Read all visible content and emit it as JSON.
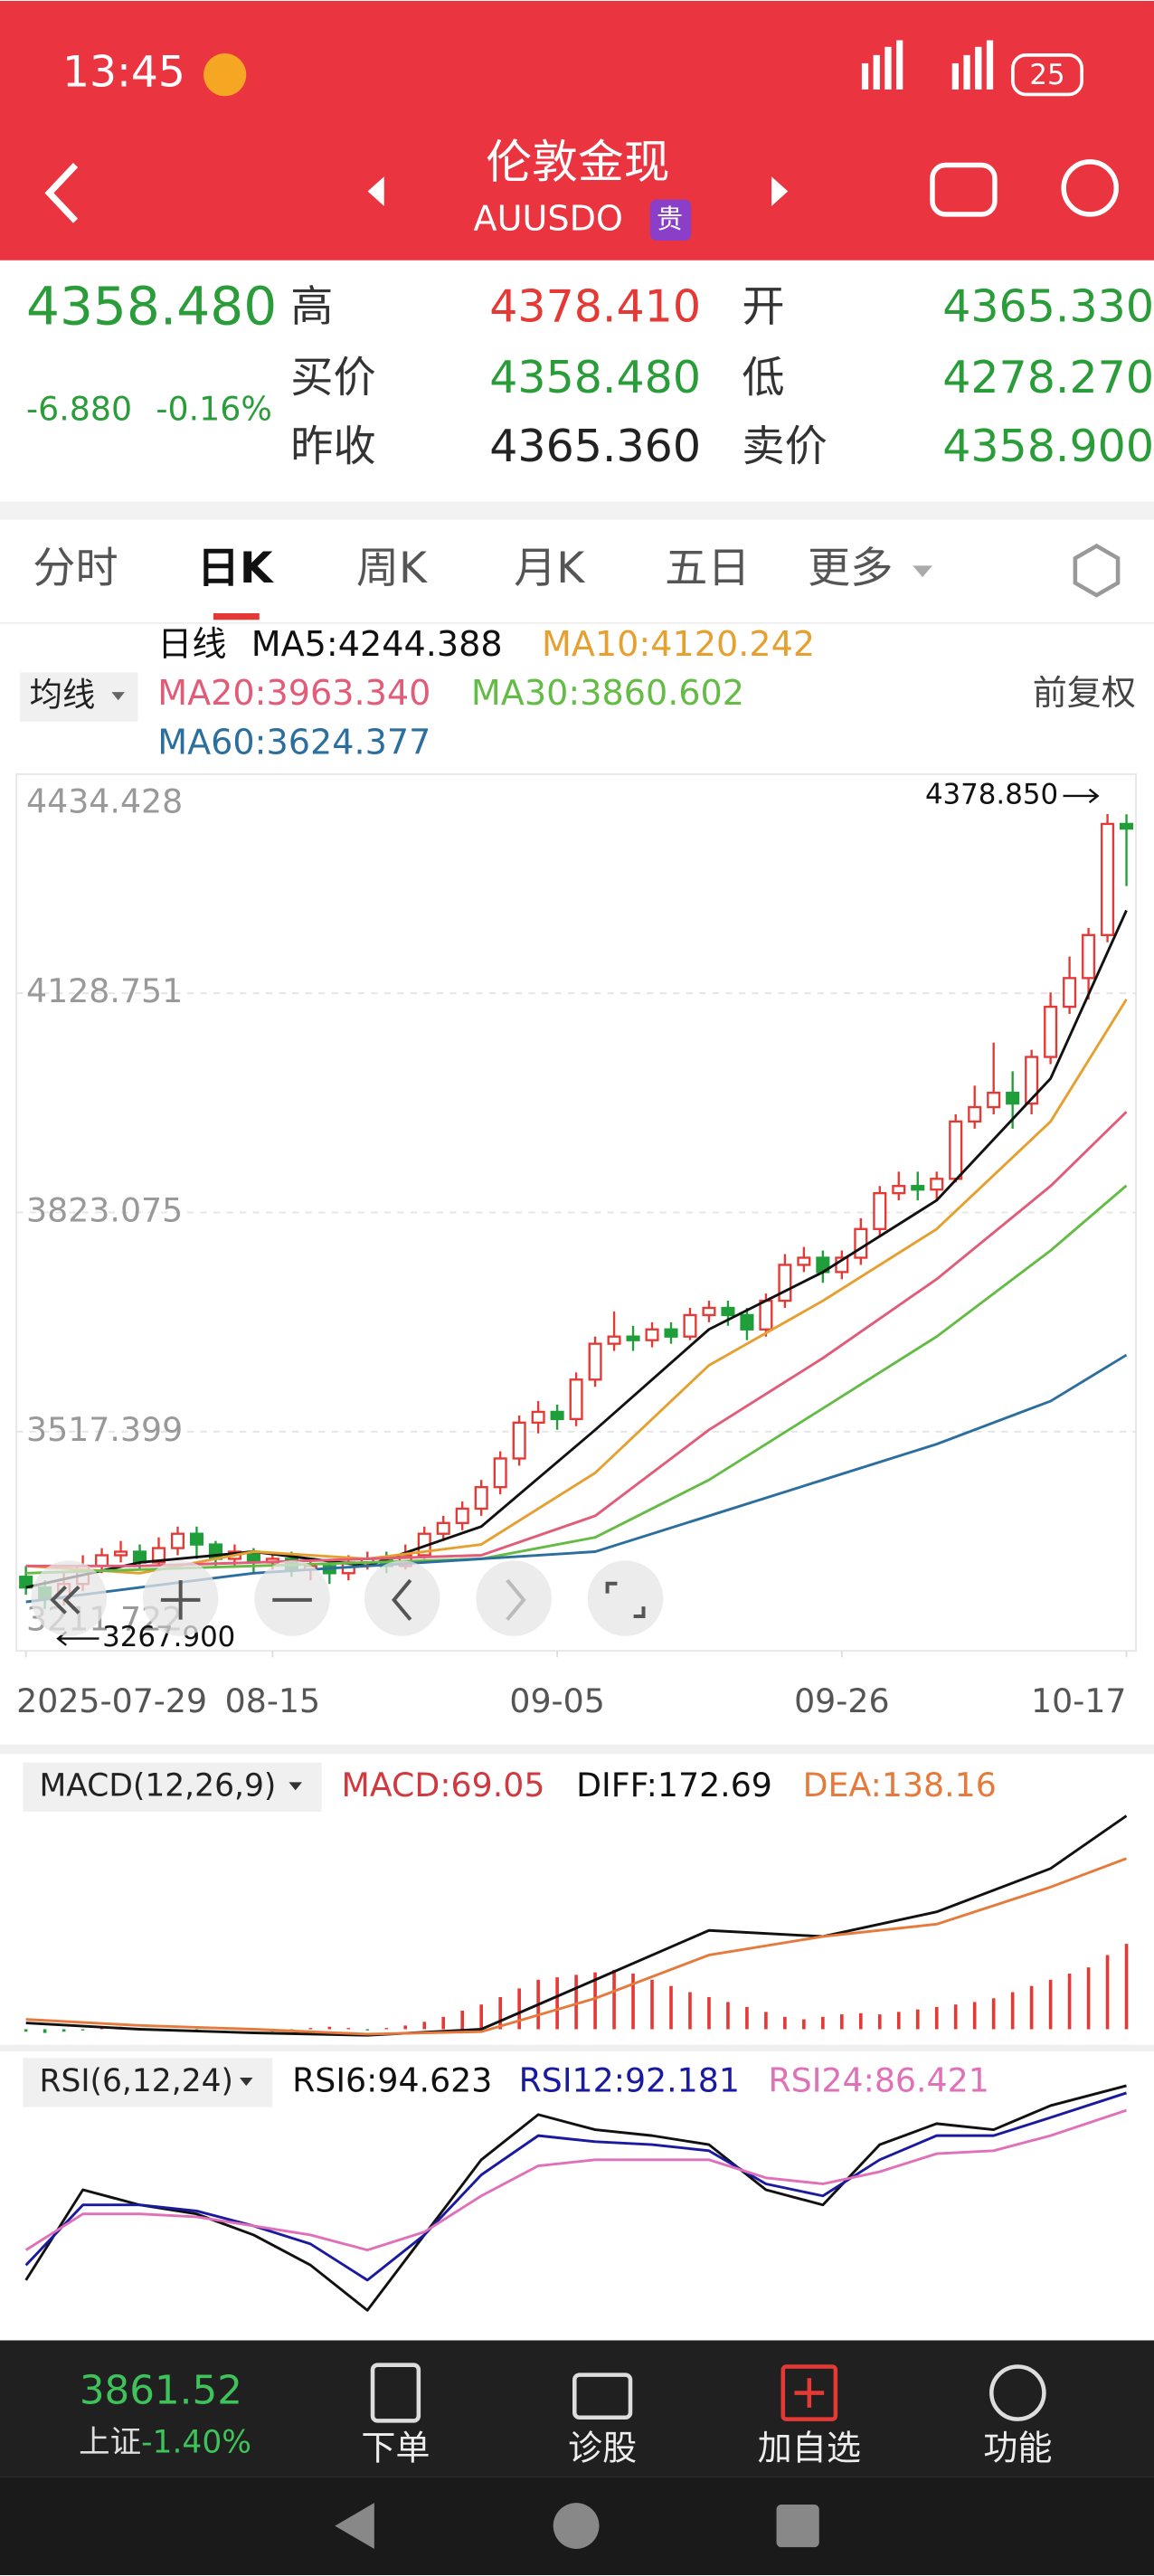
{
  "status_bar": {
    "time": "13:45",
    "battery": "25"
  },
  "header": {
    "title": "伦敦金现",
    "code": "AUUSDO",
    "badge": "贵"
  },
  "quote": {
    "price": "4358.480",
    "change": "-6.880",
    "change_pct": "-0.16%",
    "fields": [
      {
        "label": "高",
        "value": "4378.410"
      },
      {
        "label": "开",
        "value": "4365.330"
      },
      {
        "label": "买价",
        "value": "4358.480"
      },
      {
        "label": "低",
        "value": "4278.270"
      },
      {
        "label": "昨收",
        "value": "4365.360"
      },
      {
        "label": "卖价",
        "value": "4358.900"
      }
    ]
  },
  "tabs": [
    "分时",
    "日K",
    "周K",
    "月K",
    "五日",
    "更多"
  ],
  "kline": {
    "period": "日线",
    "ma_selector": "均线",
    "adjust": "前复权",
    "ylim": [
      3211.722,
      4434.428
    ],
    "yticks": [
      4434.428,
      4128.751,
      3823.075,
      3517.399,
      3211.722
    ],
    "xlim": [
      -0.5,
      58.5
    ],
    "xticks": [
      {
        "value": 0,
        "label": "2025-07-29"
      },
      {
        "value": 13,
        "label": "08-15"
      },
      {
        "value": 28,
        "label": "09-05"
      },
      {
        "value": 43,
        "label": "09-26"
      },
      {
        "value": 58,
        "label": "10-17"
      }
    ],
    "up_color": "#e53935",
    "down_color": "#1f9e3a",
    "max_label": "4378.850",
    "min_label": "3267.900",
    "candles": {
      "open": [
        3315,
        3300,
        3285,
        3305,
        3330,
        3345,
        3350,
        3335,
        3355,
        3375,
        3360,
        3340,
        3350,
        3335,
        3340,
        3325,
        3330,
        3320,
        3335,
        3340,
        3330,
        3345,
        3375,
        3390,
        3410,
        3440,
        3480,
        3530,
        3545,
        3535,
        3590,
        3640,
        3650,
        3645,
        3660,
        3650,
        3680,
        3690,
        3680,
        3660,
        3700,
        3750,
        3760,
        3740,
        3760,
        3800,
        3850,
        3860,
        3855,
        3870,
        3950,
        3970,
        3990,
        3975,
        4040,
        4110,
        4150,
        4210,
        4365
      ],
      "high": [
        3330,
        3310,
        3320,
        3345,
        3355,
        3365,
        3360,
        3370,
        3385,
        3385,
        3365,
        3360,
        3355,
        3350,
        3350,
        3340,
        3340,
        3345,
        3350,
        3350,
        3360,
        3385,
        3400,
        3420,
        3450,
        3490,
        3540,
        3560,
        3555,
        3600,
        3650,
        3685,
        3665,
        3670,
        3670,
        3690,
        3700,
        3700,
        3690,
        3710,
        3765,
        3775,
        3770,
        3770,
        3815,
        3860,
        3880,
        3880,
        3880,
        3960,
        4000,
        4060,
        4020,
        4050,
        4130,
        4180,
        4220,
        4378.85,
        4378.41
      ],
      "low": [
        3290,
        3270,
        3275,
        3295,
        3320,
        3335,
        3325,
        3330,
        3345,
        3340,
        3330,
        3330,
        3320,
        3325,
        3315,
        3310,
        3305,
        3310,
        3325,
        3320,
        3325,
        3340,
        3365,
        3380,
        3400,
        3430,
        3470,
        3515,
        3520,
        3525,
        3580,
        3630,
        3630,
        3635,
        3640,
        3645,
        3670,
        3665,
        3645,
        3650,
        3690,
        3740,
        3725,
        3730,
        3750,
        3790,
        3840,
        3840,
        3840,
        3865,
        3940,
        3960,
        3940,
        3960,
        4030,
        4100,
        4120,
        4200,
        4278.27
      ],
      "close": [
        3300,
        3285,
        3305,
        3330,
        3345,
        3350,
        3335,
        3355,
        3375,
        3360,
        3340,
        3350,
        3335,
        3340,
        3325,
        3330,
        3320,
        3335,
        3340,
        3330,
        3345,
        3375,
        3390,
        3410,
        3440,
        3480,
        3530,
        3545,
        3535,
        3590,
        3640,
        3650,
        3645,
        3660,
        3650,
        3680,
        3690,
        3680,
        3660,
        3700,
        3750,
        3760,
        3740,
        3760,
        3800,
        3850,
        3860,
        3855,
        3870,
        3950,
        3970,
        3990,
        3975,
        4040,
        4110,
        4150,
        4210,
        4365,
        4358.48
      ]
    },
    "ma": {
      "x": [
        0,
        6,
        12,
        18,
        24,
        30,
        36,
        42,
        48,
        54,
        58
      ],
      "series": [
        {
          "label": "MA5:4244.388",
          "color": "#111111",
          "values": [
            3300,
            3335,
            3350,
            3330,
            3385,
            3520,
            3660,
            3740,
            3840,
            4010,
            4244.388
          ]
        },
        {
          "label": "MA10:4120.242",
          "color": "#e5a030",
          "values": [
            3330,
            3320,
            3350,
            3340,
            3360,
            3460,
            3610,
            3700,
            3800,
            3950,
            4120.242
          ]
        },
        {
          "label": "MA20:3963.340",
          "color": "#e05c78",
          "values": [
            3330,
            3330,
            3335,
            3340,
            3345,
            3400,
            3520,
            3620,
            3730,
            3860,
            3963.34
          ]
        },
        {
          "label": "MA30:3860.602",
          "color": "#64bb45",
          "values": [
            3320,
            3325,
            3330,
            3335,
            3340,
            3370,
            3450,
            3550,
            3650,
            3770,
            3860.602
          ]
        },
        {
          "label": "MA60:3624.377",
          "color": "#2c6e9e",
          "values": [
            3280,
            3300,
            3320,
            3330,
            3340,
            3350,
            3400,
            3450,
            3500,
            3560,
            3624.377
          ]
        }
      ]
    }
  },
  "macd": {
    "title": "MACD(12,26,9)",
    "ylim": [
      -6,
      180
    ],
    "up_color": "#e53935",
    "down_color": "#1f9e3a",
    "histogram_label": "MACD:69.05",
    "histogram_color": "#d0393f",
    "histogram": [
      -2,
      -3,
      -2,
      -1,
      1,
      2,
      1,
      -1,
      -2,
      -1,
      1,
      0,
      -1,
      -2,
      -1,
      1,
      2,
      1,
      -1,
      1,
      3,
      6,
      10,
      15,
      20,
      26,
      33,
      40,
      42,
      44,
      46,
      48,
      45,
      40,
      35,
      30,
      26,
      22,
      18,
      14,
      10,
      8,
      10,
      12,
      13,
      12,
      14,
      16,
      18,
      20,
      22,
      25,
      30,
      35,
      40,
      45,
      50,
      60,
      69.05
    ],
    "x": [
      0,
      6,
      12,
      18,
      24,
      30,
      36,
      42,
      48,
      54,
      58
    ],
    "series": [
      {
        "label": "DIFF:172.69",
        "color": "#111111",
        "values": [
          5,
          0,
          -3,
          -5,
          0,
          40,
          80,
          75,
          95,
          130,
          172.69
        ]
      },
      {
        "label": "DEA:138.16",
        "color": "#e57a3c",
        "values": [
          8,
          3,
          0,
          -4,
          -2,
          25,
          60,
          75,
          85,
          115,
          138.16
        ]
      }
    ]
  },
  "rsi": {
    "title": "RSI(6,12,24)",
    "ylim": [
      10,
      100
    ],
    "x": [
      0,
      3,
      6,
      9,
      12,
      15,
      18,
      21,
      24,
      27,
      30,
      33,
      36,
      39,
      42,
      45,
      48,
      51,
      54,
      58
    ],
    "series": [
      {
        "label": "RSI6:94.623",
        "color": "#111111",
        "values": [
          30,
          60,
          55,
          52,
          45,
          35,
          20,
          45,
          70,
          85,
          80,
          78,
          75,
          60,
          55,
          75,
          82,
          80,
          88,
          94.623
        ]
      },
      {
        "label": "RSI12:92.181",
        "color": "#1a1aa0",
        "values": [
          35,
          55,
          55,
          53,
          48,
          42,
          30,
          45,
          65,
          78,
          76,
          75,
          73,
          62,
          58,
          70,
          78,
          78,
          84,
          92.181
        ]
      },
      {
        "label": "RSI24:86.421",
        "color": "#e070b8",
        "values": [
          40,
          52,
          52,
          51,
          48,
          45,
          40,
          46,
          58,
          68,
          70,
          70,
          70,
          64,
          62,
          66,
          72,
          73,
          78,
          86.421
        ]
      }
    ]
  },
  "bottom_bar": {
    "index_value": "3861.52",
    "index_name": "上证",
    "index_change": "-1.40%",
    "items": [
      "下单",
      "诊股",
      "加自选",
      "功能"
    ]
  }
}
